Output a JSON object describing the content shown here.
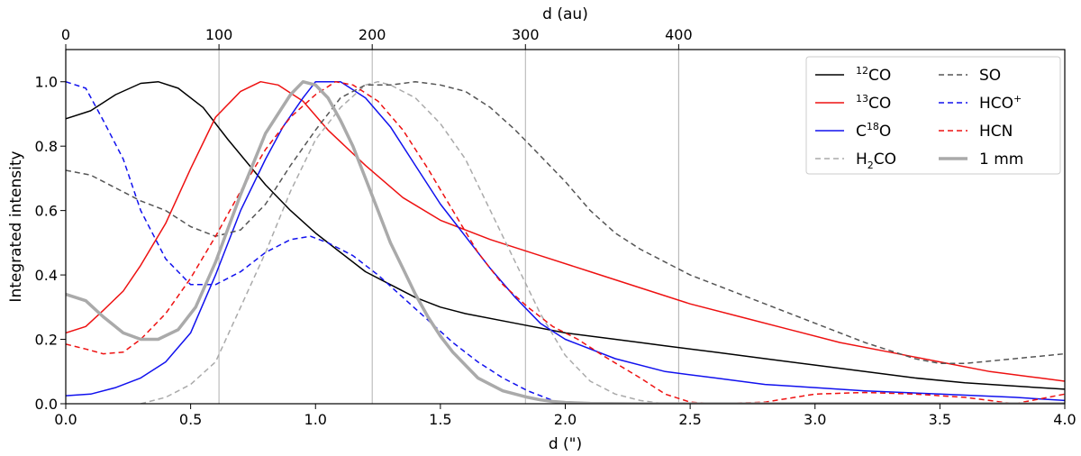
{
  "chart_data": {
    "type": "line",
    "xlabel": "d (\")",
    "ylabel": "Integrated intensity",
    "top_xlabel": "d (au)",
    "xlim": [
      0,
      4.0
    ],
    "ylim": [
      0,
      1.1
    ],
    "x_ticks": [
      0.0,
      0.5,
      1.0,
      1.5,
      2.0,
      2.5,
      3.0,
      3.5,
      4.0
    ],
    "x_tick_labels": [
      "0.0",
      "0.5",
      "1.0",
      "1.5",
      "2.0",
      "2.5",
      "3.0",
      "3.5",
      "4.0"
    ],
    "y_ticks": [
      0.0,
      0.2,
      0.4,
      0.6,
      0.8,
      1.0
    ],
    "y_tick_labels": [
      "0.0",
      "0.2",
      "0.4",
      "0.6",
      "0.8",
      "1.0"
    ],
    "top_ticks": [
      0,
      100,
      200,
      300,
      400
    ],
    "top_tick_labels": [
      "0",
      "100",
      "200",
      "300",
      "400"
    ],
    "au_per_arcsec": 163,
    "grid": "vertical lines at top axis ticks",
    "legend_position": "top-right",
    "series": [
      {
        "name": "12CO",
        "legend_main": "CO",
        "legend_sup": "12",
        "legend_sup_pos": "before",
        "color": "#000000",
        "dash": "solid",
        "width": 1.5,
        "x": [
          0.0,
          0.1,
          0.2,
          0.3,
          0.37,
          0.45,
          0.55,
          0.65,
          0.8,
          0.9,
          1.0,
          1.1,
          1.2,
          1.3,
          1.4,
          1.5,
          1.6,
          1.8,
          2.0,
          2.2,
          2.4,
          2.6,
          2.8,
          3.0,
          3.2,
          3.4,
          3.6,
          3.8,
          4.0
        ],
        "y": [
          0.885,
          0.91,
          0.96,
          0.995,
          1.0,
          0.98,
          0.92,
          0.82,
          0.68,
          0.6,
          0.53,
          0.47,
          0.41,
          0.37,
          0.33,
          0.3,
          0.28,
          0.25,
          0.22,
          0.2,
          0.18,
          0.16,
          0.14,
          0.12,
          0.1,
          0.08,
          0.065,
          0.055,
          0.045
        ]
      },
      {
        "name": "13CO",
        "legend_main": "CO",
        "legend_sup": "13",
        "legend_sup_pos": "before",
        "color": "#ee1111",
        "dash": "solid",
        "width": 1.5,
        "x": [
          0.0,
          0.08,
          0.15,
          0.23,
          0.3,
          0.4,
          0.5,
          0.6,
          0.7,
          0.78,
          0.85,
          0.95,
          1.05,
          1.2,
          1.35,
          1.5,
          1.7,
          1.9,
          2.1,
          2.3,
          2.5,
          2.7,
          2.9,
          3.1,
          3.3,
          3.5,
          3.7,
          3.9,
          4.0
        ],
        "y": [
          0.22,
          0.24,
          0.29,
          0.35,
          0.43,
          0.56,
          0.73,
          0.89,
          0.97,
          1.0,
          0.99,
          0.94,
          0.85,
          0.74,
          0.64,
          0.57,
          0.51,
          0.46,
          0.41,
          0.36,
          0.31,
          0.27,
          0.23,
          0.19,
          0.16,
          0.13,
          0.1,
          0.08,
          0.07
        ]
      },
      {
        "name": "C18O",
        "legend_main": "O",
        "legend_pre": "C",
        "legend_sup": "18",
        "legend_sup_pos": "middle",
        "color": "#1111ee",
        "dash": "solid",
        "width": 1.5,
        "x": [
          0.0,
          0.1,
          0.2,
          0.3,
          0.4,
          0.5,
          0.6,
          0.7,
          0.8,
          0.87,
          0.95,
          1.0,
          1.1,
          1.2,
          1.3,
          1.4,
          1.5,
          1.6,
          1.7,
          1.8,
          1.9,
          2.0,
          2.2,
          2.4,
          2.6,
          2.8,
          3.0,
          3.2,
          3.5,
          3.8,
          4.0
        ],
        "y": [
          0.025,
          0.03,
          0.05,
          0.08,
          0.13,
          0.22,
          0.4,
          0.6,
          0.76,
          0.86,
          0.95,
          1.0,
          1.0,
          0.95,
          0.86,
          0.74,
          0.62,
          0.52,
          0.42,
          0.33,
          0.25,
          0.2,
          0.14,
          0.1,
          0.08,
          0.06,
          0.05,
          0.04,
          0.03,
          0.02,
          0.01
        ]
      },
      {
        "name": "H2CO",
        "legend_main": "CO",
        "legend_pre": "H",
        "legend_sub": "2",
        "color": "#aaaaaa",
        "dash": "dashed",
        "width": 1.5,
        "x": [
          0.3,
          0.4,
          0.5,
          0.6,
          0.7,
          0.8,
          0.9,
          1.0,
          1.1,
          1.2,
          1.25,
          1.3,
          1.4,
          1.5,
          1.6,
          1.7,
          1.8,
          1.9,
          2.0,
          2.1,
          2.2,
          2.3,
          2.4,
          2.5,
          2.7,
          2.9,
          3.2,
          3.5,
          3.8,
          4.0
        ],
        "y": [
          0.0,
          0.02,
          0.06,
          0.13,
          0.3,
          0.47,
          0.66,
          0.82,
          0.92,
          0.99,
          1.0,
          0.99,
          0.95,
          0.87,
          0.76,
          0.6,
          0.44,
          0.28,
          0.15,
          0.07,
          0.03,
          0.01,
          0.0,
          0.0,
          0.0,
          0.0,
          0.0,
          0.0,
          0.0,
          0.0
        ]
      },
      {
        "name": "SO",
        "legend_main": "SO",
        "color": "#555555",
        "dash": "dashed",
        "width": 1.5,
        "x": [
          0.0,
          0.1,
          0.2,
          0.3,
          0.4,
          0.5,
          0.6,
          0.7,
          0.8,
          0.9,
          1.0,
          1.1,
          1.2,
          1.3,
          1.4,
          1.5,
          1.6,
          1.7,
          1.8,
          1.9,
          2.0,
          2.1,
          2.2,
          2.3,
          2.4,
          2.5,
          2.6,
          2.8,
          3.0,
          3.2,
          3.4,
          3.5,
          3.6,
          3.8,
          4.0
        ],
        "y": [
          0.725,
          0.71,
          0.67,
          0.63,
          0.6,
          0.55,
          0.52,
          0.54,
          0.62,
          0.74,
          0.85,
          0.95,
          0.99,
          0.99,
          1.0,
          0.99,
          0.97,
          0.92,
          0.85,
          0.77,
          0.69,
          0.6,
          0.53,
          0.48,
          0.44,
          0.4,
          0.37,
          0.31,
          0.25,
          0.19,
          0.14,
          0.125,
          0.125,
          0.14,
          0.155
        ]
      },
      {
        "name": "HCO+",
        "legend_main": "HCO",
        "legend_sup": "+",
        "legend_sup_pos": "after",
        "color": "#1111ee",
        "dash": "dashed",
        "width": 1.5,
        "x": [
          0.0,
          0.08,
          0.15,
          0.23,
          0.3,
          0.4,
          0.5,
          0.6,
          0.7,
          0.8,
          0.9,
          0.98,
          1.05,
          1.15,
          1.25,
          1.35,
          1.45,
          1.55,
          1.65,
          1.75,
          1.85,
          1.95,
          2.0
        ],
        "y": [
          1.0,
          0.98,
          0.88,
          0.76,
          0.6,
          0.45,
          0.37,
          0.37,
          0.41,
          0.47,
          0.51,
          0.52,
          0.5,
          0.46,
          0.4,
          0.33,
          0.26,
          0.19,
          0.13,
          0.08,
          0.04,
          0.01,
          0.0
        ]
      },
      {
        "name": "HCN",
        "legend_main": "HCN",
        "color": "#ee1111",
        "dash": "dashed",
        "width": 1.5,
        "x": [
          0.0,
          0.08,
          0.15,
          0.23,
          0.3,
          0.4,
          0.5,
          0.6,
          0.7,
          0.8,
          0.9,
          1.0,
          1.08,
          1.15,
          1.25,
          1.35,
          1.45,
          1.55,
          1.65,
          1.75,
          1.85,
          1.95,
          2.05,
          2.15,
          2.3,
          2.4,
          2.5,
          2.6,
          2.8,
          3.0,
          3.2,
          3.4,
          3.6,
          3.8,
          4.0
        ],
        "y": [
          0.185,
          0.17,
          0.155,
          0.16,
          0.2,
          0.28,
          0.39,
          0.52,
          0.66,
          0.79,
          0.89,
          0.96,
          1.0,
          0.99,
          0.94,
          0.85,
          0.73,
          0.6,
          0.47,
          0.37,
          0.3,
          0.24,
          0.2,
          0.15,
          0.08,
          0.03,
          0.005,
          0.0,
          0.005,
          0.03,
          0.035,
          0.03,
          0.02,
          0.0,
          0.03
        ]
      },
      {
        "name": "1 mm",
        "legend_main": "1 mm",
        "color": "#aaaaaa",
        "dash": "solid",
        "width": 3.5,
        "x": [
          0.0,
          0.08,
          0.15,
          0.23,
          0.3,
          0.37,
          0.45,
          0.52,
          0.6,
          0.7,
          0.8,
          0.9,
          0.95,
          1.0,
          1.05,
          1.1,
          1.15,
          1.2,
          1.25,
          1.3,
          1.35,
          1.4,
          1.45,
          1.5,
          1.55,
          1.6,
          1.65,
          1.7,
          1.75,
          1.8,
          1.85,
          1.9,
          1.95,
          2.0,
          2.1,
          2.3,
          2.6,
          3.0,
          4.0
        ],
        "y": [
          0.34,
          0.32,
          0.27,
          0.22,
          0.2,
          0.2,
          0.23,
          0.3,
          0.44,
          0.65,
          0.84,
          0.96,
          1.0,
          0.99,
          0.95,
          0.88,
          0.8,
          0.7,
          0.6,
          0.5,
          0.42,
          0.34,
          0.27,
          0.21,
          0.16,
          0.12,
          0.08,
          0.06,
          0.04,
          0.03,
          0.02,
          0.012,
          0.007,
          0.004,
          0.001,
          0.0,
          0.0,
          0.0,
          0.0
        ]
      }
    ]
  }
}
